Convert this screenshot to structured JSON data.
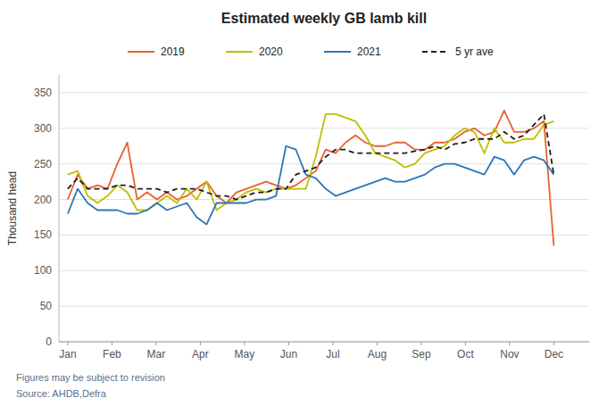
{
  "chart_data": {
    "type": "line",
    "title": "Estimated weekly GB lamb kill",
    "y_label": "Thousand head",
    "annotations": [
      "Figures may be subject to revision",
      "Source: AHDB,Defra"
    ],
    "x": [
      0,
      0.22449,
      0.44898,
      0.673469,
      0.897959,
      1.122449,
      1.346939,
      1.571429,
      1.795918,
      2.020408,
      2.244898,
      2.469388,
      2.693878,
      2.918367,
      3.142857,
      3.367347,
      3.591837,
      3.816327,
      4.040816,
      4.265306,
      4.489796,
      4.714286,
      4.938776,
      5.163265,
      5.387755,
      5.612245,
      5.836735,
      6.061224,
      6.285714,
      6.510204,
      6.734694,
      6.959184,
      7.183673,
      7.408163,
      7.632653,
      7.857143,
      8.081633,
      8.306122,
      8.530612,
      8.755102,
      8.979592,
      9.204082,
      9.428571,
      9.653061,
      9.877551,
      10.102041,
      10.326531,
      10.55102,
      10.77551,
      11
    ],
    "series": [
      {
        "name": "2019",
        "color": "#E8612C",
        "line_style": "solid",
        "values": [
          200,
          235,
          215,
          220,
          215,
          250,
          280,
          200,
          210,
          200,
          210,
          200,
          205,
          215,
          225,
          205,
          195,
          210,
          215,
          220,
          225,
          220,
          215,
          220,
          230,
          240,
          270,
          265,
          280,
          290,
          280,
          275,
          275,
          280,
          280,
          270,
          270,
          280,
          280,
          285,
          295,
          300,
          290,
          295,
          325,
          295,
          295,
          300,
          310,
          135
        ]
      },
      {
        "name": "2020",
        "color": "#BFBF00",
        "line_style": "solid",
        "values": [
          235,
          240,
          205,
          195,
          205,
          220,
          210,
          185,
          185,
          195,
          205,
          195,
          215,
          200,
          225,
          185,
          195,
          200,
          210,
          215,
          210,
          215,
          215,
          215,
          215,
          260,
          320,
          320,
          315,
          310,
          290,
          265,
          260,
          255,
          245,
          250,
          265,
          270,
          275,
          290,
          300,
          295,
          265,
          300,
          280,
          280,
          285,
          285,
          305,
          310
        ]
      },
      {
        "name": "2021",
        "color": "#2E75B6",
        "line_style": "solid",
        "values": [
          180,
          215,
          195,
          185,
          185,
          185,
          180,
          180,
          185,
          195,
          185,
          190,
          195,
          175,
          165,
          195,
          195,
          195,
          195,
          200,
          200,
          205,
          275,
          270,
          235,
          230,
          215,
          205,
          210,
          215,
          220,
          225,
          230,
          225,
          225,
          230,
          235,
          245,
          250,
          250,
          245,
          240,
          235,
          260,
          255,
          235,
          255,
          260,
          255,
          235
        ]
      },
      {
        "name": "5 yr ave",
        "color": "#1F1F1F",
        "line_style": "dashed",
        "values": [
          215,
          230,
          215,
          215,
          215,
          220,
          220,
          215,
          215,
          215,
          210,
          215,
          215,
          215,
          210,
          205,
          205,
          200,
          205,
          210,
          210,
          215,
          215,
          235,
          240,
          245,
          260,
          270,
          270,
          265,
          265,
          265,
          265,
          265,
          265,
          268,
          270,
          275,
          270,
          278,
          280,
          285,
          285,
          285,
          295,
          285,
          290,
          305,
          320,
          235
        ]
      }
    ],
    "xlim": [
      -0.2,
      11.8
    ],
    "xticks": [
      {
        "value": 0,
        "label": "Jan"
      },
      {
        "value": 1,
        "label": "Feb"
      },
      {
        "value": 2,
        "label": "Mar"
      },
      {
        "value": 3,
        "label": "Apr"
      },
      {
        "value": 4,
        "label": "May"
      },
      {
        "value": 5,
        "label": "Jun"
      },
      {
        "value": 6,
        "label": "Jul"
      },
      {
        "value": 7,
        "label": "Aug"
      },
      {
        "value": 8,
        "label": "Sep"
      },
      {
        "value": 9,
        "label": "Oct"
      },
      {
        "value": 10,
        "label": "Nov"
      },
      {
        "value": 11,
        "label": "Dec"
      }
    ],
    "ylim": [
      0,
      375
    ],
    "yticks": [
      0,
      50,
      100,
      150,
      200,
      250,
      300,
      350
    ],
    "grid": true,
    "legend": "top"
  }
}
